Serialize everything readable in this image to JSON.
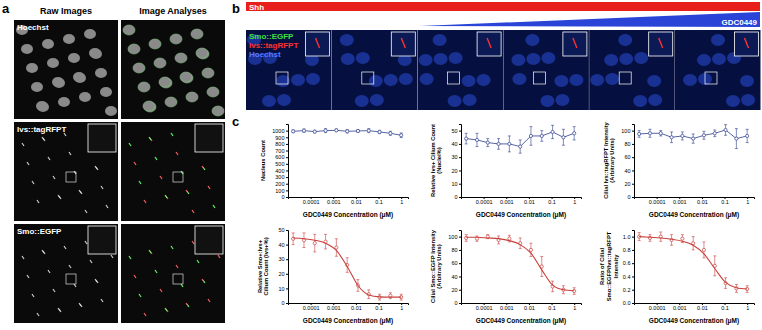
{
  "figure": {
    "panel_a": {
      "label": "a",
      "headers": [
        "Raw Images",
        "Image Analyses"
      ],
      "rows": [
        "Hoechst",
        "Ivs::tagRFPT",
        "Smo::EGFP"
      ]
    },
    "panel_b": {
      "label": "b",
      "treatment": "Shh",
      "gradient": "GDC0449",
      "channels": [
        {
          "name": "Smo::EGFP",
          "color": "#3fe03f"
        },
        {
          "name": "Ivs::tagRFPT",
          "color": "#ff3030"
        },
        {
          "name": "Hoechst",
          "color": "#5a78ff"
        }
      ]
    },
    "panel_c": {
      "label": "c"
    }
  },
  "chart_data": [
    {
      "type": "line",
      "x_label": "GDC0449 Concentration (μM)",
      "y_label": [
        "Nucleus Count"
      ],
      "log": "x",
      "x": [
        1.69e-05,
        5.08e-05,
        0.000152,
        0.000457,
        0.00137,
        0.00412,
        0.0123,
        0.037,
        0.111,
        0.333,
        1
      ],
      "xlim": [
        1e-05,
        2
      ],
      "xticks": [
        0.0001,
        0.001,
        0.01,
        0.1,
        1
      ],
      "ylim": [
        0,
        1100
      ],
      "yticks": [
        0,
        100,
        200,
        300,
        400,
        500,
        600,
        700,
        800,
        900,
        1000
      ],
      "series": [
        {
          "type": "line",
          "color": "#2c3e8c",
          "marker": "circle",
          "values": [
            990,
            1000,
            985,
            1000,
            1005,
            990,
            995,
            1000,
            980,
            960,
            930
          ],
          "errors": [
            20,
            25,
            20,
            30,
            20,
            25,
            20,
            30,
            25,
            30,
            35
          ]
        }
      ]
    },
    {
      "type": "line",
      "x_label": "GDC0449 Concentration (μM)",
      "y_label": [
        "Relative Ivs+ Cilium Count",
        "(Nuclei%)"
      ],
      "log": "x",
      "x": [
        1.69e-05,
        5.08e-05,
        0.000152,
        0.000457,
        0.00137,
        0.00412,
        0.0123,
        0.037,
        0.111,
        0.333,
        1
      ],
      "xlim": [
        1e-05,
        2
      ],
      "xticks": [
        0.0001,
        0.001,
        0.01,
        0.1,
        1
      ],
      "ylim": [
        0,
        55
      ],
      "yticks": [
        0,
        10,
        20,
        30,
        40,
        50
      ],
      "series": [
        {
          "type": "line",
          "color": "#2c3e8c",
          "marker": "circle",
          "values": [
            44,
            43,
            41,
            40,
            40,
            38,
            46,
            46,
            49,
            45,
            48
          ],
          "errors": [
            4,
            5,
            3,
            4,
            6,
            5,
            7,
            4,
            5,
            6,
            5
          ]
        }
      ]
    },
    {
      "type": "line",
      "x_label": "GDC0449 Concentration (μM)",
      "y_label": [
        "Cilial Ivs::tagRFPT Intensity",
        "(Arbitrary Units)"
      ],
      "log": "x",
      "x": [
        1.69e-05,
        5.08e-05,
        0.000152,
        0.000457,
        0.00137,
        0.00412,
        0.0123,
        0.037,
        0.111,
        0.333,
        1
      ],
      "xlim": [
        1e-05,
        2
      ],
      "xticks": [
        0.0001,
        0.001,
        0.01,
        0.1,
        1
      ],
      "ylim": [
        0,
        110
      ],
      "yticks": [
        0,
        20,
        40,
        60,
        80,
        100
      ],
      "series": [
        {
          "type": "line",
          "color": "#2c3e8c",
          "marker": "circle",
          "values": [
            95,
            96,
            96,
            90,
            92,
            88,
            93,
            96,
            101,
            88,
            92
          ],
          "errors": [
            5,
            6,
            4,
            8,
            6,
            7,
            6,
            5,
            8,
            15,
            10
          ]
        }
      ]
    },
    {
      "type": "scatter",
      "x_label": "GDC0449 Concentration (μM)",
      "y_label": [
        "Relative Smo+:Ivs+",
        "Cilium Count (Ivs+%)"
      ],
      "log": "x",
      "x": [
        1.69e-05,
        5.08e-05,
        0.000152,
        0.000457,
        0.00137,
        0.00412,
        0.0123,
        0.037,
        0.111,
        0.333,
        1
      ],
      "xlim": [
        1e-05,
        2
      ],
      "xticks": [
        0.0001,
        0.001,
        0.01,
        0.1,
        1
      ],
      "ylim": [
        0,
        50
      ],
      "yticks": [
        0,
        10,
        20,
        30,
        40,
        50
      ],
      "series": [
        {
          "type": "scatter",
          "color": "#c8403c",
          "marker": "circle",
          "values": [
            44,
            43,
            41,
            42,
            38,
            26,
            12,
            6,
            4,
            5,
            4
          ],
          "errors": [
            4,
            5,
            6,
            5,
            6,
            5,
            4,
            3,
            2,
            2,
            2
          ]
        },
        {
          "type": "line",
          "color": "#c8403c",
          "values": [
            44.5,
            44,
            43,
            41,
            36,
            25,
            12,
            5.5,
            4.2,
            4,
            4
          ]
        }
      ]
    },
    {
      "type": "scatter",
      "x_label": "GDC0449 Concentration (μM)",
      "y_label": [
        "Cilial Smo::EGFP Intensity",
        "(Arbitrary Units)"
      ],
      "log": "x",
      "x": [
        1.69e-05,
        5.08e-05,
        0.000152,
        0.000457,
        0.00137,
        0.00412,
        0.0123,
        0.037,
        0.111,
        0.333,
        1
      ],
      "xlim": [
        1e-05,
        2
      ],
      "xticks": [
        0.0001,
        0.001,
        0.01,
        0.1,
        1
      ],
      "ylim": [
        0,
        110
      ],
      "yticks": [
        0,
        20,
        40,
        60,
        80,
        100
      ],
      "series": [
        {
          "type": "scatter",
          "color": "#c8403c",
          "marker": "circle",
          "values": [
            98,
            97,
            100,
            95,
            97,
            90,
            80,
            55,
            25,
            20,
            18
          ],
          "errors": [
            5,
            4,
            3,
            6,
            5,
            8,
            10,
            15,
            8,
            6,
            5
          ]
        },
        {
          "type": "line",
          "color": "#c8403c",
          "values": [
            99,
            99,
            98,
            97,
            94,
            88,
            75,
            50,
            27,
            20,
            18.5
          ]
        }
      ]
    },
    {
      "type": "scatter",
      "x_label": "GDC0449 Concentration (μM)",
      "y_label": [
        "Ratio of Cilial",
        "Smo::EGFP/Ivs::tagRFPT",
        "Intensity"
      ],
      "log": "x",
      "x": [
        1.69e-05,
        5.08e-05,
        0.000152,
        0.000457,
        0.00137,
        0.00412,
        0.0123,
        0.037,
        0.111,
        0.333,
        1
      ],
      "xlim": [
        1e-05,
        2
      ],
      "xticks": [
        0.0001,
        0.001,
        0.01,
        0.1,
        1
      ],
      "ylim": [
        0,
        1.1
      ],
      "yticks": [
        {
          "value": 0,
          "label": "0.0"
        },
        0.2,
        0.4,
        0.6,
        0.8,
        {
          "value": 1,
          "label": "1.0"
        }
      ],
      "series": [
        {
          "type": "scatter",
          "color": "#c8403c",
          "marker": "circle",
          "values": [
            1.0,
            0.98,
            1.0,
            0.95,
            0.97,
            0.9,
            0.8,
            0.56,
            0.3,
            0.22,
            0.21
          ],
          "errors": [
            0.06,
            0.05,
            0.07,
            0.08,
            0.06,
            0.1,
            0.12,
            0.15,
            0.08,
            0.06,
            0.05
          ]
        },
        {
          "type": "line",
          "color": "#c8403c",
          "values": [
            1.0,
            0.99,
            0.98,
            0.96,
            0.93,
            0.87,
            0.74,
            0.52,
            0.31,
            0.23,
            0.21
          ]
        }
      ]
    }
  ]
}
